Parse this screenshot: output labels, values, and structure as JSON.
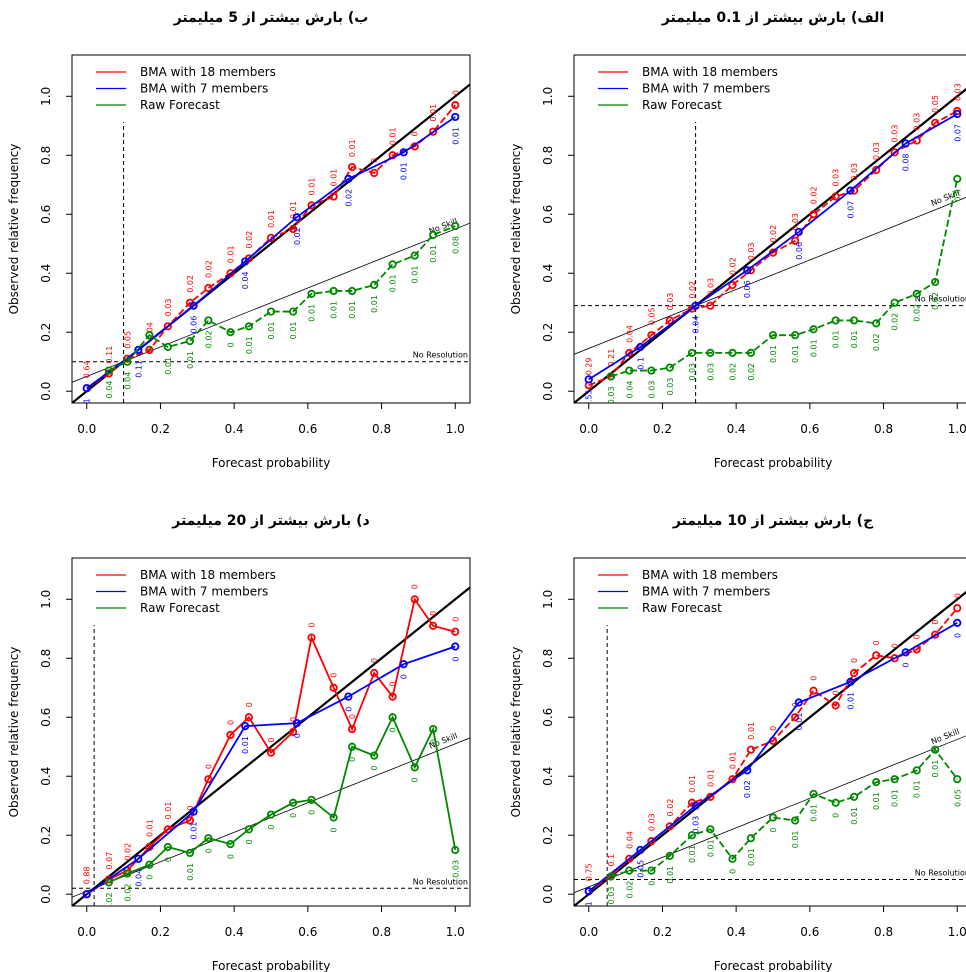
{
  "chart_data": [
    {
      "type": "reliability",
      "title": "ب) بارش بیشتر از 5 میلیمتر",
      "x_label": "Forecast probability",
      "y_label": "Observed relative frequency",
      "xlim": [
        -0.04,
        1.04
      ],
      "ylim": [
        -0.04,
        1.14
      ],
      "xticks": [
        {
          "value": 0,
          "label": "0.0"
        },
        {
          "value": 0.2,
          "label": "0.2"
        },
        {
          "value": 0.4,
          "label": "0.4"
        },
        {
          "value": 0.6,
          "label": "0.6"
        },
        {
          "value": 0.8,
          "label": "0.8"
        },
        {
          "value": 1,
          "label": "1.0"
        }
      ],
      "yticks": [
        {
          "value": 0,
          "label": "0.0"
        },
        {
          "value": 0.2,
          "label": "0.2"
        },
        {
          "value": 0.4,
          "label": "0.4"
        },
        {
          "value": 0.6,
          "label": "0.6"
        },
        {
          "value": 0.8,
          "label": "0.8"
        },
        {
          "value": 1,
          "label": "1.0"
        }
      ],
      "climatology": 0.1,
      "no_skill_label": "No Skill",
      "no_resolution_label": "No Resolution",
      "legend": "top-left",
      "series": [
        {
          "name": "BMA with 18 members",
          "color": "#ff0000",
          "dashed": true,
          "x": [
            0,
            0.06,
            0.11,
            0.17,
            0.22,
            0.28,
            0.33,
            0.39,
            0.44,
            0.5,
            0.56,
            0.61,
            0.67,
            0.72,
            0.78,
            0.83,
            0.89,
            0.94,
            1
          ],
          "values": [
            0.01,
            0.06,
            0.11,
            0.14,
            0.22,
            0.3,
            0.35,
            0.4,
            0.45,
            0.52,
            0.55,
            0.63,
            0.66,
            0.76,
            0.74,
            0.8,
            0.83,
            0.88,
            0.97
          ],
          "annotations": [
            "0.64",
            "0.11",
            "0.05",
            "0.04",
            "0.03",
            "0.02",
            "0.02",
            "0.01",
            "0.02",
            "0.01",
            "0.01",
            "0.01",
            "0.01",
            "0.01",
            "0",
            "0.01",
            "0",
            "0.01",
            "0"
          ]
        },
        {
          "name": "BMA with 7 members",
          "color": "#0000ff",
          "dashed": false,
          "x": [
            0,
            0.14,
            0.29,
            0.43,
            0.57,
            0.71,
            0.86,
            1
          ],
          "values": [
            0.01,
            0.14,
            0.29,
            0.44,
            0.59,
            0.72,
            0.81,
            0.93
          ],
          "annotations": [
            "1",
            "0.11",
            "0.06",
            "0.04",
            "0.02",
            "0.02",
            "0.01",
            "0.01"
          ]
        },
        {
          "name": "Raw Forecast",
          "color": "#008800",
          "dashed": true,
          "x": [
            0.06,
            0.11,
            0.17,
            0.22,
            0.28,
            0.33,
            0.39,
            0.44,
            0.5,
            0.56,
            0.61,
            0.67,
            0.72,
            0.78,
            0.83,
            0.89,
            0.94,
            1
          ],
          "values": [
            0.07,
            0.1,
            0.19,
            0.15,
            0.17,
            0.24,
            0.2,
            0.22,
            0.27,
            0.27,
            0.33,
            0.34,
            0.34,
            0.36,
            0.43,
            0.46,
            0.53,
            0.56
          ],
          "annotations": [
            "0.04",
            "0.04",
            "0",
            "0.01",
            "0.01",
            "0.02",
            "0",
            "0.01",
            "0.01",
            "0.01",
            "0.01",
            "0.01",
            "0.01",
            "0.01",
            "0.01",
            "0.01",
            "0.01",
            "0.08"
          ]
        }
      ]
    },
    {
      "type": "reliability",
      "title": "الف) بارش بیشتر از 0.1 میلیمتر",
      "x_label": "Forecast probability",
      "y_label": "Observed relative frequency",
      "xlim": [
        -0.04,
        1.04
      ],
      "ylim": [
        -0.04,
        1.14
      ],
      "xticks": [
        {
          "value": 0,
          "label": "0.0"
        },
        {
          "value": 0.2,
          "label": "0.2"
        },
        {
          "value": 0.4,
          "label": "0.4"
        },
        {
          "value": 0.6,
          "label": "0.6"
        },
        {
          "value": 0.8,
          "label": "0.8"
        },
        {
          "value": 1,
          "label": "1.0"
        }
      ],
      "yticks": [
        {
          "value": 0,
          "label": "0.0"
        },
        {
          "value": 0.2,
          "label": "0.2"
        },
        {
          "value": 0.4,
          "label": "0.4"
        },
        {
          "value": 0.6,
          "label": "0.6"
        },
        {
          "value": 0.8,
          "label": "0.8"
        },
        {
          "value": 1,
          "label": "1.0"
        }
      ],
      "climatology": 0.29,
      "no_skill_label": "No Skill",
      "no_resolution_label": "No Resolution",
      "legend": "top-left",
      "series": [
        {
          "name": "BMA with 18 members",
          "color": "#ff0000",
          "dashed": true,
          "x": [
            0,
            0.06,
            0.11,
            0.17,
            0.22,
            0.28,
            0.33,
            0.39,
            0.44,
            0.5,
            0.56,
            0.61,
            0.67,
            0.72,
            0.78,
            0.83,
            0.89,
            0.94,
            1
          ],
          "values": [
            0.02,
            0.05,
            0.13,
            0.19,
            0.24,
            0.28,
            0.29,
            0.36,
            0.41,
            0.47,
            0.51,
            0.6,
            0.66,
            0.68,
            0.75,
            0.81,
            0.85,
            0.91,
            0.95
          ],
          "annotations": [
            "0.29",
            "0.21",
            "0.04",
            "0.05",
            "0.03",
            "0.02",
            "0.03",
            "0.02",
            "0.03",
            "0.02",
            "0.03",
            "0.02",
            "0.03",
            "0.03",
            "0.03",
            "0.03",
            "0.03",
            "0.05",
            "0.03"
          ]
        },
        {
          "name": "BMA with 7 members",
          "color": "#0000ff",
          "dashed": false,
          "x": [
            0,
            0.14,
            0.29,
            0.43,
            0.57,
            0.71,
            0.86,
            1
          ],
          "values": [
            0.04,
            0.15,
            0.29,
            0.41,
            0.54,
            0.68,
            0.84,
            0.94
          ],
          "annotations": [
            "0.55",
            "0.1",
            "0.04",
            "0.06",
            "0.06",
            "0.07",
            "0.08",
            "0.07"
          ]
        },
        {
          "name": "Raw Forecast",
          "color": "#008800",
          "dashed": true,
          "x": [
            0.06,
            0.11,
            0.17,
            0.22,
            0.28,
            0.33,
            0.39,
            0.44,
            0.5,
            0.56,
            0.61,
            0.67,
            0.72,
            0.78,
            0.83,
            0.89,
            0.94,
            1
          ],
          "values": [
            0.05,
            0.07,
            0.07,
            0.08,
            0.13,
            0.13,
            0.13,
            0.13,
            0.19,
            0.19,
            0.21,
            0.24,
            0.24,
            0.23,
            0.3,
            0.33,
            0.37,
            0.72
          ],
          "annotations": [
            "0.03",
            "0.04",
            "0.03",
            "0.03",
            "0.03",
            "0.03",
            "0.02",
            "0.02",
            "0.01",
            "0.01",
            "0.01",
            "0.01",
            "0.01",
            "0.02",
            "0.02",
            "0.02",
            "0.02",
            "0.4"
          ]
        }
      ]
    },
    {
      "type": "reliability",
      "title": "د) بارش بیشتر از 20 میلیمتر",
      "x_label": "Forecast probability",
      "y_label": "Observed relative frequency",
      "xlim": [
        -0.04,
        1.04
      ],
      "ylim": [
        -0.04,
        1.14
      ],
      "xticks": [
        {
          "value": 0,
          "label": "0.0"
        },
        {
          "value": 0.2,
          "label": "0.2"
        },
        {
          "value": 0.4,
          "label": "0.4"
        },
        {
          "value": 0.6,
          "label": "0.6"
        },
        {
          "value": 0.8,
          "label": "0.8"
        },
        {
          "value": 1,
          "label": "1.0"
        }
      ],
      "yticks": [
        {
          "value": 0,
          "label": "0.0"
        },
        {
          "value": 0.2,
          "label": "0.2"
        },
        {
          "value": 0.4,
          "label": "0.4"
        },
        {
          "value": 0.6,
          "label": "0.6"
        },
        {
          "value": 0.8,
          "label": "0.8"
        },
        {
          "value": 1,
          "label": "1.0"
        }
      ],
      "climatology": 0.02,
      "no_skill_label": "No Skill",
      "no_resolution_label": "No Resolution",
      "legend": "top-left",
      "series": [
        {
          "name": "BMA with 18 members",
          "color": "#ff0000",
          "dashed": false,
          "x": [
            0,
            0.06,
            0.11,
            0.17,
            0.22,
            0.28,
            0.33,
            0.39,
            0.44,
            0.5,
            0.56,
            0.61,
            0.67,
            0.72,
            0.78,
            0.83,
            0.89,
            0.94,
            1
          ],
          "values": [
            0,
            0.05,
            0.08,
            0.16,
            0.22,
            0.25,
            0.39,
            0.54,
            0.6,
            0.48,
            0.55,
            0.87,
            0.7,
            0.56,
            0.75,
            0.67,
            1,
            0.91,
            0.89
          ],
          "annotations": [
            "0.88",
            "0.07",
            "0.02",
            "0.01",
            "0.01",
            "0",
            "0",
            "0",
            "0",
            "0",
            "0",
            "0",
            "0",
            "0",
            "0",
            "0",
            "0",
            "0",
            "0"
          ]
        },
        {
          "name": "BMA with 7 members",
          "color": "#0000ff",
          "dashed": false,
          "x": [
            0,
            0.14,
            0.29,
            0.43,
            0.57,
            0.71,
            0.86,
            1
          ],
          "values": [
            0,
            0.12,
            0.28,
            0.57,
            0.58,
            0.67,
            0.78,
            0.84
          ],
          "annotations": [
            "1",
            "0.04",
            "0.01",
            "0.01",
            "0",
            "0",
            "0",
            "0"
          ]
        },
        {
          "name": "Raw Forecast",
          "color": "#008800",
          "dashed": false,
          "x": [
            0.06,
            0.11,
            0.17,
            0.22,
            0.28,
            0.33,
            0.39,
            0.44,
            0.5,
            0.56,
            0.61,
            0.67,
            0.72,
            0.78,
            0.83,
            0.89,
            0.94,
            1
          ],
          "values": [
            0.04,
            0.07,
            0.1,
            0.16,
            0.14,
            0.19,
            0.17,
            0.22,
            0.27,
            0.31,
            0.32,
            0.26,
            0.5,
            0.47,
            0.6,
            0.43,
            0.56,
            0.15
          ],
          "annotations": [
            "0.02",
            "0.02",
            "0",
            "0",
            "0.01",
            "0",
            "0",
            "0",
            "0",
            "0",
            "0",
            "0",
            "0",
            "0",
            "0",
            "0",
            "0",
            "0.03"
          ]
        }
      ]
    },
    {
      "type": "reliability",
      "title": "ج) بارش بیشتر از 10 میلیمتر",
      "x_label": "Forecast probability",
      "y_label": "Observed relative frequency",
      "xlim": [
        -0.04,
        1.04
      ],
      "ylim": [
        -0.04,
        1.14
      ],
      "xticks": [
        {
          "value": 0,
          "label": "0.0"
        },
        {
          "value": 0.2,
          "label": "0.2"
        },
        {
          "value": 0.4,
          "label": "0.4"
        },
        {
          "value": 0.6,
          "label": "0.6"
        },
        {
          "value": 0.8,
          "label": "0.8"
        },
        {
          "value": 1,
          "label": "1.0"
        }
      ],
      "yticks": [
        {
          "value": 0,
          "label": "0.0"
        },
        {
          "value": 0.2,
          "label": "0.2"
        },
        {
          "value": 0.4,
          "label": "0.4"
        },
        {
          "value": 0.6,
          "label": "0.6"
        },
        {
          "value": 0.8,
          "label": "0.8"
        },
        {
          "value": 1,
          "label": "1.0"
        }
      ],
      "climatology": 0.05,
      "no_skill_label": "No Skill",
      "no_resolution_label": "No Resolution",
      "legend": "top-left",
      "series": [
        {
          "name": "BMA with 18 members",
          "color": "#ff0000",
          "dashed": true,
          "x": [
            0,
            0.06,
            0.11,
            0.17,
            0.22,
            0.28,
            0.33,
            0.39,
            0.44,
            0.5,
            0.56,
            0.61,
            0.67,
            0.72,
            0.78,
            0.83,
            0.89,
            0.94,
            1
          ],
          "values": [
            0.01,
            0.06,
            0.12,
            0.18,
            0.23,
            0.31,
            0.33,
            0.39,
            0.49,
            0.52,
            0.6,
            0.69,
            0.64,
            0.75,
            0.81,
            0.8,
            0.83,
            0.88,
            0.97
          ],
          "annotations": [
            "0.75",
            "0.1",
            "0.04",
            "0.03",
            "0.02",
            "0.01",
            "0.01",
            "0.01",
            "0.01",
            "0",
            "0",
            "0",
            "0",
            "0",
            "0",
            "0",
            "0",
            "0",
            "0"
          ]
        },
        {
          "name": "BMA with 7 members",
          "color": "#0000ff",
          "dashed": false,
          "x": [
            0,
            0.14,
            0.29,
            0.43,
            0.57,
            0.71,
            0.86,
            1
          ],
          "values": [
            0.01,
            0.15,
            0.3,
            0.42,
            0.65,
            0.72,
            0.82,
            0.92
          ],
          "annotations": [
            "1",
            "0.05",
            "0.03",
            "0.02",
            "0.01",
            "0.01",
            "0",
            "0"
          ]
        },
        {
          "name": "Raw Forecast",
          "color": "#008800",
          "dashed": true,
          "x": [
            0.06,
            0.11,
            0.17,
            0.22,
            0.28,
            0.33,
            0.39,
            0.44,
            0.5,
            0.56,
            0.61,
            0.67,
            0.72,
            0.78,
            0.83,
            0.89,
            0.94,
            1
          ],
          "values": [
            0.06,
            0.08,
            0.08,
            0.13,
            0.2,
            0.22,
            0.12,
            0.19,
            0.26,
            0.25,
            0.34,
            0.31,
            0.33,
            0.38,
            0.39,
            0.42,
            0.49,
            0.39
          ],
          "annotations": [
            "0.03",
            "0.02",
            "0",
            "0.01",
            "0.01",
            "0.01",
            "0",
            "0.01",
            "0",
            "0.01",
            "0.01",
            "0",
            "0.01",
            "0.01",
            "0.01",
            "0.01",
            "0.01",
            "0.05"
          ]
        }
      ]
    }
  ]
}
